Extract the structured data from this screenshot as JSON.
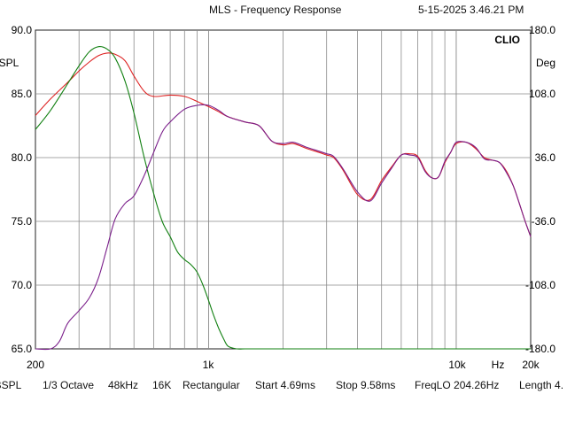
{
  "window": {
    "title": "MLS - Frequency Response",
    "timestamp": "5-15-2025 3.46.21 PM"
  },
  "brand": "CLIO",
  "left_axis": {
    "unit": "dBSPL",
    "ticks": [
      "90.0",
      "85.0",
      "80.0",
      "75.0",
      "70.0",
      "65.0"
    ]
  },
  "right_axis": {
    "unit": "Deg",
    "ticks": [
      "180.0",
      "108.0",
      "36.0",
      "-36.0",
      "-108.0",
      "-180.0"
    ]
  },
  "x_axis": {
    "ticks": [
      "200",
      "1k",
      "10k",
      "Hz",
      "20k"
    ]
  },
  "status_bar": {
    "unit": "dBSPL",
    "smoothing": "1/3 Octave",
    "sample_rate": "48kHz",
    "size": "16K",
    "window": "Rectangular",
    "start": "Start 4.69ms",
    "stop": "Stop 9.58ms",
    "freq_lo": "FreqLO 204.26Hz",
    "length": "Length 4."
  },
  "colors": {
    "red": "#dd2222",
    "green": "#128012",
    "purple": "#7a1e8a",
    "grid": "#8a8a8a"
  },
  "chart_data": {
    "type": "line",
    "title": "MLS - Frequency Response",
    "xlabel": "Hz",
    "ylabel": "dBSPL",
    "y2label": "Deg",
    "xscale": "log",
    "xlim": [
      200,
      20000
    ],
    "ylim": [
      65,
      90
    ],
    "y2lim": [
      -180,
      180
    ],
    "grid": true,
    "series": [
      {
        "color": "#dd2222",
        "axis": "left",
        "x": [
          200,
          230,
          270,
          300,
          330,
          360,
          390,
          420,
          460,
          500,
          550,
          600,
          700,
          800,
          900,
          1000,
          1100,
          1200,
          1400,
          1600,
          1800,
          2000,
          2200,
          2500,
          2800,
          3000,
          3200,
          3500,
          4000,
          4500,
          5000,
          5500,
          6000,
          6500,
          7000,
          7500,
          8000,
          8500,
          9000,
          9500,
          10000,
          11000,
          12000,
          13000,
          14000,
          15000,
          16000,
          17000,
          18000,
          19000,
          20000
        ],
        "y": [
          83.3,
          84.6,
          85.9,
          86.8,
          87.5,
          88.0,
          88.2,
          88.1,
          87.6,
          86.4,
          85.2,
          84.8,
          84.9,
          84.8,
          84.4,
          84.0,
          83.6,
          83.2,
          82.8,
          82.5,
          81.3,
          81.0,
          81.1,
          80.7,
          80.4,
          80.2,
          80.0,
          79.0,
          77.1,
          76.7,
          78.2,
          79.3,
          80.2,
          80.3,
          80.1,
          79.0,
          78.4,
          78.5,
          79.6,
          80.4,
          81.1,
          81.2,
          80.7,
          80.0,
          79.8,
          79.6,
          78.9,
          77.8,
          76.4,
          75.0,
          73.8
        ]
      },
      {
        "color": "#128012",
        "axis": "left",
        "x": [
          200,
          230,
          270,
          300,
          330,
          360,
          390,
          420,
          460,
          500,
          550,
          600,
          650,
          700,
          750,
          800,
          850,
          900,
          950,
          1000,
          1050,
          1100,
          1150,
          1200,
          1300,
          1400,
          1500,
          1550,
          1600,
          1800,
          2000,
          4000,
          10000,
          20000
        ],
        "y": [
          82.2,
          83.7,
          85.8,
          87.2,
          88.3,
          88.7,
          88.5,
          87.8,
          86.0,
          83.5,
          80.0,
          77.2,
          75.0,
          73.8,
          72.6,
          72.0,
          71.6,
          71.0,
          70.0,
          68.8,
          67.6,
          66.6,
          65.8,
          65.2,
          65.0,
          65.0,
          65.0,
          65.0,
          65.0,
          65.0,
          65.0,
          65.0,
          65.0,
          65.0
        ]
      },
      {
        "color": "#7a1e8a",
        "axis": "left",
        "x": [
          200,
          230,
          250,
          270,
          300,
          330,
          360,
          390,
          420,
          460,
          500,
          550,
          600,
          650,
          700,
          800,
          900,
          1000,
          1100,
          1200,
          1400,
          1600,
          1800,
          2000,
          2200,
          2500,
          2800,
          3000,
          3200,
          3500,
          4000,
          4500,
          5000,
          5500,
          6000,
          6500,
          7000,
          7500,
          8000,
          8500,
          9000,
          9500,
          10000,
          11000,
          12000,
          13000,
          14000,
          15000,
          16000,
          17000,
          18000,
          19000,
          20000
        ],
        "y": [
          65.0,
          65.0,
          65.6,
          67.0,
          68.0,
          69.0,
          70.6,
          73.0,
          75.2,
          76.4,
          77.0,
          78.6,
          80.4,
          82.0,
          82.8,
          83.8,
          84.1,
          84.1,
          83.7,
          83.2,
          82.8,
          82.5,
          81.3,
          81.1,
          81.2,
          80.8,
          80.5,
          80.3,
          80.1,
          79.1,
          77.3,
          76.6,
          78.0,
          79.2,
          80.2,
          80.2,
          80.0,
          78.9,
          78.4,
          78.5,
          79.7,
          80.4,
          81.2,
          81.2,
          80.8,
          79.9,
          79.8,
          79.6,
          78.8,
          77.8,
          76.4,
          75.0,
          73.8
        ]
      }
    ]
  }
}
